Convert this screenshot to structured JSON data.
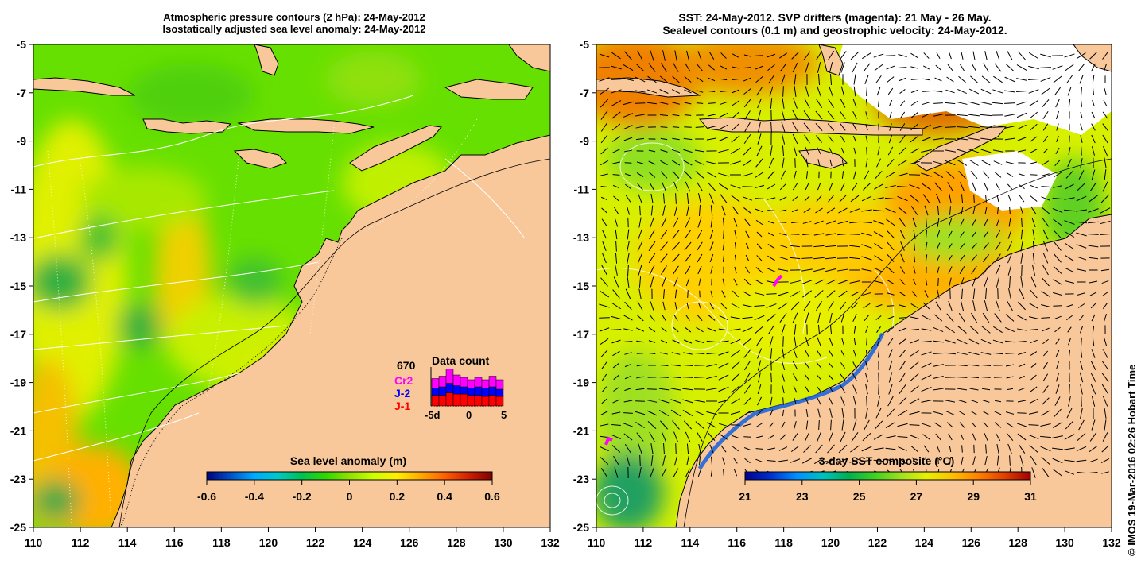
{
  "left_panel": {
    "title_line1": "Atmospheric pressure contours (2 hPa): 24-May-2012",
    "title_line2": "Isostatically adjusted sea level anomaly: 24-May-2012",
    "x_ticks": [
      "110",
      "112",
      "114",
      "116",
      "118",
      "120",
      "122",
      "124",
      "126",
      "128",
      "130",
      "132"
    ],
    "y_ticks": [
      "-5",
      "-7",
      "-9",
      "-11",
      "-13",
      "-15",
      "-17",
      "-19",
      "-21",
      "-23",
      "-25"
    ],
    "colorbar": {
      "label": "Sea level anomaly (m)",
      "ticks": [
        "-0.6",
        "-0.4",
        "-0.2",
        "0",
        "0.2",
        "0.4",
        "0.6"
      ]
    },
    "data_count": {
      "title": "Data count",
      "total": "670",
      "series": [
        {
          "name": "Cr2",
          "color": "#ff00ff"
        },
        {
          "name": "J-2",
          "color": "#0000ff"
        },
        {
          "name": "J-1",
          "color": "#ff0000"
        }
      ],
      "x_ticks": [
        "-5d",
        "0",
        "5"
      ],
      "bars": [
        {
          "j1": 0.45,
          "j2": 0.3,
          "cr2": 0.4
        },
        {
          "j1": 0.45,
          "j2": 0.35,
          "cr2": 0.45
        },
        {
          "j1": 0.55,
          "j2": 0.4,
          "cr2": 0.6
        },
        {
          "j1": 0.5,
          "j2": 0.35,
          "cr2": 0.45
        },
        {
          "j1": 0.5,
          "j2": 0.3,
          "cr2": 0.4
        },
        {
          "j1": 0.45,
          "j2": 0.3,
          "cr2": 0.35
        },
        {
          "j1": 0.45,
          "j2": 0.35,
          "cr2": 0.4
        },
        {
          "j1": 0.4,
          "j2": 0.35,
          "cr2": 0.35
        },
        {
          "j1": 0.45,
          "j2": 0.35,
          "cr2": 0.45
        },
        {
          "j1": 0.4,
          "j2": 0.3,
          "cr2": 0.4
        }
      ]
    }
  },
  "right_panel": {
    "title_line1": "SST: 24-May-2012. SVP drifters (magenta): 21 May - 26 May.",
    "title_line2": "Sealevel contours (0.1 m) and geostrophic velocity: 24-May-2012.",
    "x_ticks": [
      "110",
      "112",
      "114",
      "116",
      "118",
      "120",
      "122",
      "124",
      "126",
      "128",
      "130",
      "132"
    ],
    "y_ticks": [
      "-5",
      "-7",
      "-9",
      "-11",
      "-13",
      "-15",
      "-17",
      "-19",
      "-21",
      "-23",
      "-25"
    ],
    "colorbar": {
      "label": "3-day SST composite (°C)",
      "ticks": [
        "21",
        "23",
        "25",
        "27",
        "29",
        "31"
      ]
    }
  },
  "credit": "© IMOS 19-Mar-2016 02:26 Hobart Time",
  "colors": {
    "land": "#f9c89a",
    "sla_ramp": [
      "#00007f",
      "#0050c8",
      "#00aaff",
      "#00c8c8",
      "#00c050",
      "#30d800",
      "#90e000",
      "#ccff00",
      "#ffee00",
      "#ffaa00",
      "#ff6000",
      "#d02000",
      "#800000"
    ],
    "sst_ramp": [
      "#000090",
      "#0030d0",
      "#0090ff",
      "#00c0c0",
      "#00b050",
      "#40d020",
      "#a0e020",
      "#e8f000",
      "#ffc000",
      "#ff8000",
      "#e04000",
      "#a00000"
    ]
  }
}
